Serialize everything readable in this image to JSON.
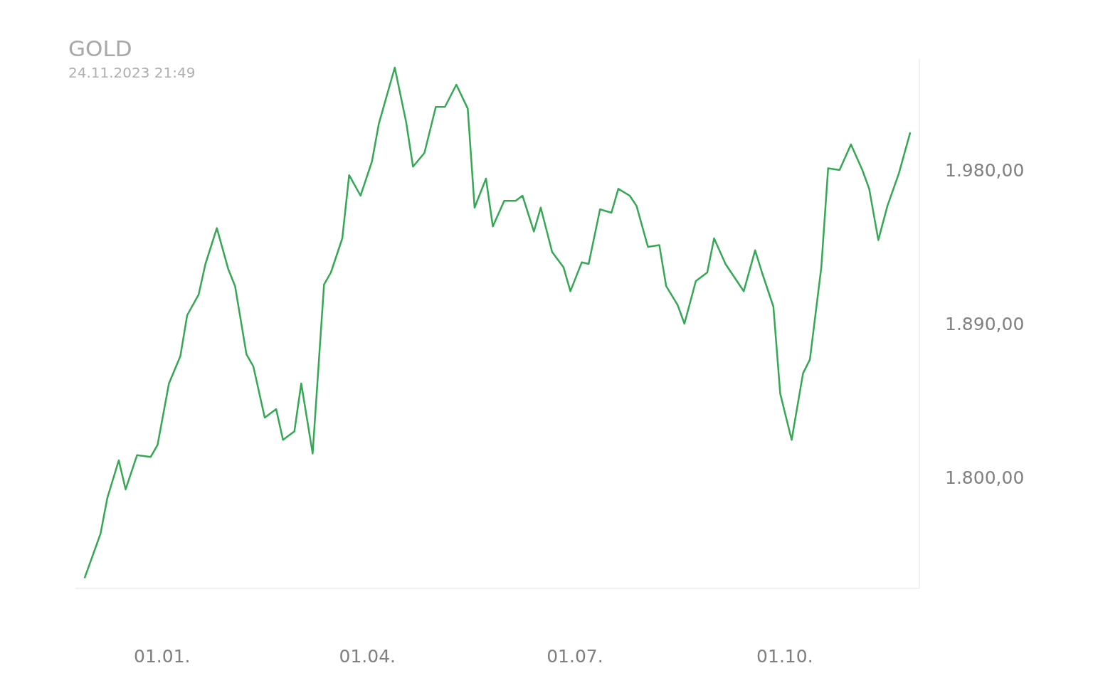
{
  "chart_data": {
    "type": "line",
    "title": "GOLD",
    "subtitle": "24.11.2023 21:49",
    "x": [
      "2022-11-28",
      "2022-12-05",
      "2022-12-08",
      "2022-12-13",
      "2022-12-16",
      "2022-12-21",
      "2022-12-27",
      "2022-12-30",
      "2023-01-04",
      "2023-01-09",
      "2023-01-12",
      "2023-01-17",
      "2023-01-20",
      "2023-01-25",
      "2023-01-30",
      "2023-02-02",
      "2023-02-07",
      "2023-02-10",
      "2023-02-15",
      "2023-02-20",
      "2023-02-23",
      "2023-02-28",
      "2023-03-03",
      "2023-03-08",
      "2023-03-13",
      "2023-03-16",
      "2023-03-21",
      "2023-03-24",
      "2023-03-29",
      "2023-04-03",
      "2023-04-06",
      "2023-04-13",
      "2023-04-18",
      "2023-04-21",
      "2023-04-26",
      "2023-05-01",
      "2023-05-05",
      "2023-05-10",
      "2023-05-15",
      "2023-05-18",
      "2023-05-23",
      "2023-05-26",
      "2023-05-31",
      "2023-06-05",
      "2023-06-08",
      "2023-06-13",
      "2023-06-16",
      "2023-06-21",
      "2023-06-26",
      "2023-06-29",
      "2023-07-04",
      "2023-07-07",
      "2023-07-12",
      "2023-07-17",
      "2023-07-20",
      "2023-07-25",
      "2023-07-28",
      "2023-08-02",
      "2023-08-07",
      "2023-08-10",
      "2023-08-15",
      "2023-08-18",
      "2023-08-23",
      "2023-08-28",
      "2023-08-31",
      "2023-09-05",
      "2023-09-10",
      "2023-09-13",
      "2023-09-18",
      "2023-09-21",
      "2023-09-26",
      "2023-09-29",
      "2023-10-04",
      "2023-10-09",
      "2023-10-12",
      "2023-10-17",
      "2023-10-20",
      "2023-10-25",
      "2023-10-30",
      "2023-11-04",
      "2023-11-07",
      "2023-11-11",
      "2023-11-15",
      "2023-11-20",
      "2023-11-25"
    ],
    "series": [
      {
        "color": "#34a853",
        "values": [
          1741,
          1767,
          1788,
          1810,
          1793,
          1813,
          1812,
          1819,
          1855,
          1871,
          1895,
          1907,
          1925,
          1946,
          1922,
          1912,
          1872,
          1865,
          1835,
          1840,
          1822,
          1827,
          1855,
          1814,
          1913,
          1920,
          1940,
          1977,
          1965,
          1985,
          2007,
          2040,
          2008,
          1982,
          1990,
          2017,
          2017,
          2030,
          2016,
          1958,
          1975,
          1947,
          1962,
          1962,
          1965,
          1944,
          1958,
          1932,
          1923,
          1909,
          1926,
          1925,
          1957,
          1955,
          1969,
          1965,
          1959,
          1935,
          1936,
          1912,
          1901,
          1890,
          1915,
          1920,
          1940,
          1925,
          1915,
          1909,
          1933,
          1920,
          1900,
          1849,
          1822,
          1861,
          1869,
          1923,
          1981,
          1980,
          1995,
          1980,
          1969,
          1939,
          1959,
          1978,
          2002
        ]
      }
    ],
    "xticks": [
      {
        "value": "2023-01-01",
        "label": "01.01."
      },
      {
        "value": "2023-04-01",
        "label": "01.04."
      },
      {
        "value": "2023-07-01",
        "label": "01.07."
      },
      {
        "value": "2023-10-01",
        "label": "01.10."
      }
    ],
    "xlim": [
      "2022-11-24",
      "2023-11-29"
    ],
    "ylim": [
      1735,
      2045
    ],
    "yticks": [
      {
        "value": 1800,
        "label": "1.800,00"
      },
      {
        "value": 1890,
        "label": "1.890,00"
      },
      {
        "value": 1980,
        "label": "1.980,00"
      }
    ],
    "grid": false,
    "legend": false,
    "marker": "none",
    "line_style": "solid"
  }
}
